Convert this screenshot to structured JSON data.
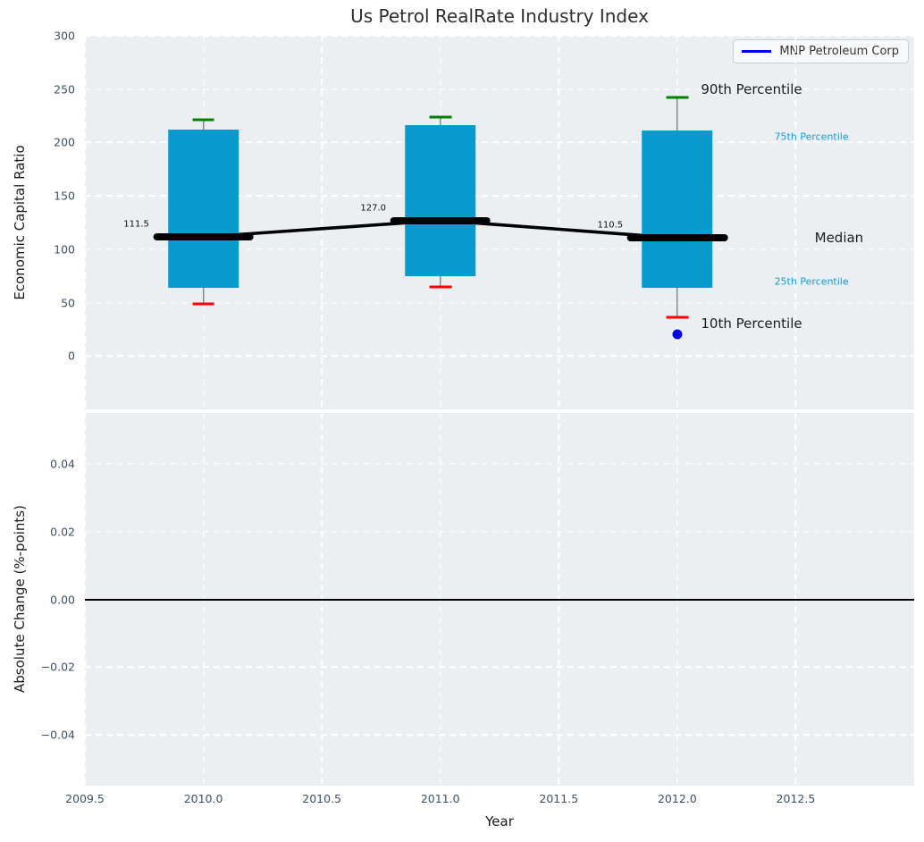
{
  "title": "Us Petrol RealRate Industry Index",
  "legend": {
    "label": "MNP Petroleum Corp"
  },
  "colors": {
    "box_fill": "#0999cd",
    "whisker": "#555555",
    "cap_high": "#008000",
    "cap_low": "#ff0000",
    "median_line": "#000000",
    "company_marker": "#0000ee",
    "annotation_accent": "#169ad6",
    "axes_background": "#eceff1",
    "gridline": "#ffffff",
    "tick_label": "#3e5066"
  },
  "chart_data": [
    {
      "type": "boxplot",
      "title": "Us Petrol RealRate Industry Index",
      "ylabel": "Economic Capital Ratio",
      "ylim": [
        -50,
        300
      ],
      "yticks": [
        300,
        250,
        200,
        150,
        100,
        50,
        0
      ],
      "ytick_labels": [
        "300",
        "250",
        "200",
        "150",
        "100",
        "50",
        "0"
      ],
      "xlim": [
        2009.5,
        2013.0
      ],
      "grid": true,
      "legend_entries": [
        "MNP Petroleum Corp"
      ],
      "legend_position": "upper right",
      "boxes": [
        {
          "x": 2010,
          "p90": 221,
          "p75": 212,
          "median": 111.5,
          "p25": 64,
          "p10": 49,
          "median_label": "111.5"
        },
        {
          "x": 2011,
          "p90": 224,
          "p75": 216,
          "median": 127.0,
          "p25": 75,
          "p10": 64.5,
          "median_label": "127.0"
        },
        {
          "x": 2012,
          "p90": 242,
          "p75": 211,
          "median": 110.5,
          "p25": 64,
          "p10": 36,
          "median_label": "110.5"
        }
      ],
      "median_trend": {
        "x": [
          2010,
          2011,
          2012
        ],
        "y": [
          111.5,
          127.0,
          110.5
        ]
      },
      "company_point": {
        "x": 2012,
        "y": 20
      },
      "annotations": [
        {
          "text": "90th Percentile",
          "x": 2012.1,
          "y": 250,
          "style": "major"
        },
        {
          "text": "75th Percentile",
          "x": 2012.41,
          "y": 205,
          "style": "accent"
        },
        {
          "text": "Median",
          "x": 2012.58,
          "y": 110.5,
          "style": "major"
        },
        {
          "text": "25th Percentile",
          "x": 2012.41,
          "y": 70,
          "style": "accent"
        },
        {
          "text": "10th Percentile",
          "x": 2012.1,
          "y": 30,
          "style": "major"
        }
      ]
    },
    {
      "type": "line",
      "ylabel": "Absolute Change (%-points)",
      "xlabel": "Year",
      "ylim": [
        -0.055,
        0.055
      ],
      "yticks": [
        0.04,
        0.02,
        0.0,
        -0.02,
        -0.04
      ],
      "ytick_labels": [
        "0.04",
        "0.02",
        "0.00",
        "−0.02",
        "−0.04"
      ],
      "xticks": [
        2009.5,
        2010.0,
        2010.5,
        2011.0,
        2011.5,
        2012.0,
        2012.5
      ],
      "xtick_labels": [
        "2009.5",
        "2010.0",
        "2010.5",
        "2011.0",
        "2011.5",
        "2012.0",
        "2012.5"
      ],
      "zero_line": 0.0,
      "grid": true,
      "series": []
    }
  ]
}
